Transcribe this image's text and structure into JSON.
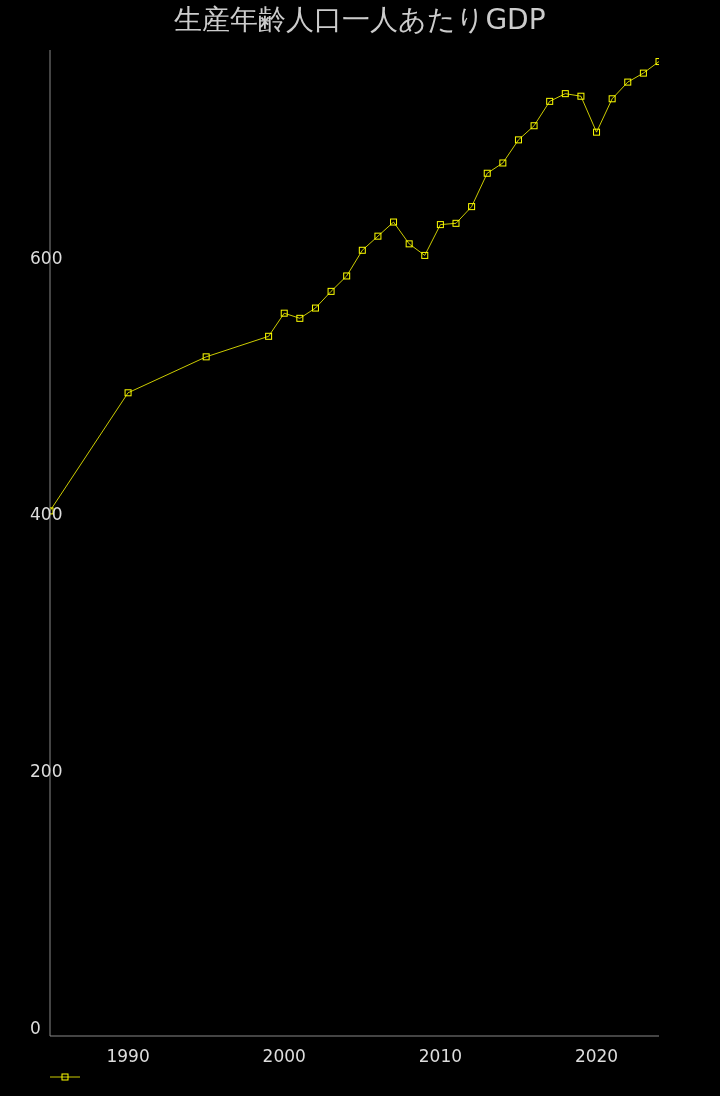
{
  "chart_data": {
    "type": "line",
    "title": "生産年齢人口一人あたりGDP",
    "x": [
      1985,
      1990,
      1995,
      1999,
      2000,
      2001,
      2002,
      2003,
      2004,
      2005,
      2006,
      2007,
      2008,
      2009,
      2010,
      2011,
      2012,
      2013,
      2014,
      2015,
      2016,
      2017,
      2018,
      2019,
      2020,
      2021,
      2022,
      2023,
      2024
    ],
    "series": [
      {
        "color": "#ffff00",
        "values": [
          409,
          501,
          529,
          545,
          563,
          559,
          567,
          580,
          592,
          612,
          623,
          634,
          617,
          608,
          632,
          633,
          646,
          672,
          680,
          698,
          709,
          728,
          734,
          732,
          704,
          730,
          743,
          750,
          759
        ]
      }
    ],
    "xlim": [
      1985,
      2024
    ],
    "xticks": [
      1990,
      2000,
      2010,
      2020
    ],
    "ylim": [
      0,
      768
    ],
    "yticks": [
      0,
      200,
      400,
      600
    ],
    "marker": "square",
    "line_style": "solid"
  }
}
